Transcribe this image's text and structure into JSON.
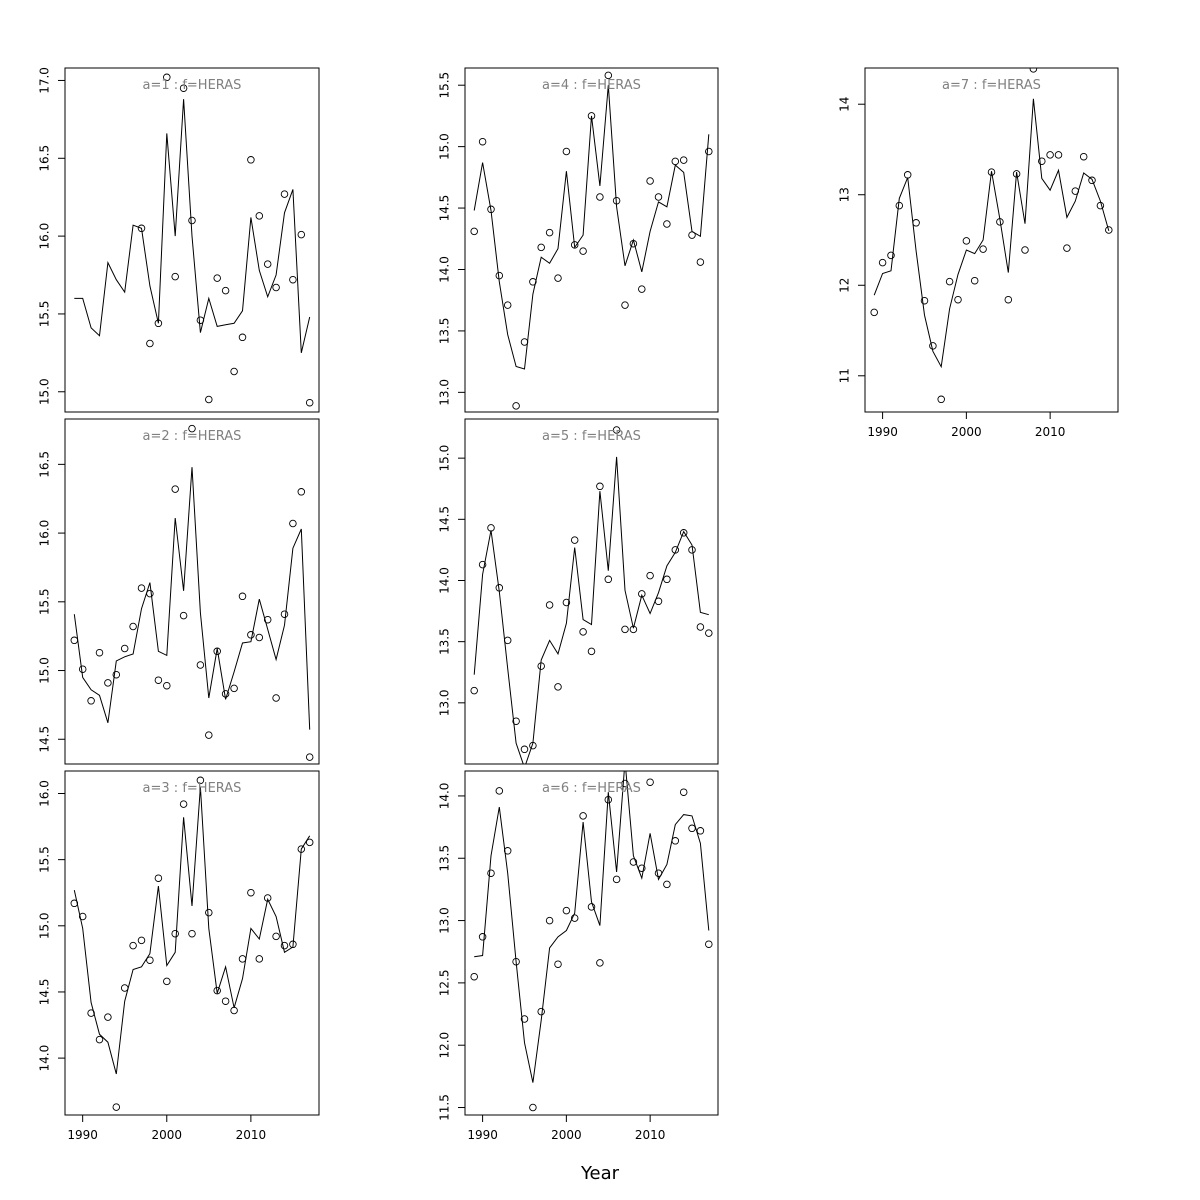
{
  "xlabel": "Year",
  "chart_data": [
    {
      "type": "scatter",
      "title": "a=1 : f=HERAS",
      "x": [
        1989,
        1990,
        1991,
        1992,
        1993,
        1994,
        1995,
        1996,
        1997,
        1998,
        1999,
        2000,
        2001,
        2002,
        2003,
        2004,
        2005,
        2006,
        2007,
        2008,
        2009,
        2010,
        2011,
        2012,
        2013,
        2014,
        2015,
        2016,
        2017
      ],
      "observed": [
        null,
        null,
        null,
        null,
        null,
        null,
        null,
        null,
        16.05,
        15.31,
        15.44,
        17.02,
        15.74,
        16.95,
        16.1,
        15.46,
        14.95,
        15.73,
        15.65,
        15.13,
        15.35,
        16.49,
        16.13,
        15.82,
        15.67,
        16.27,
        15.72,
        16.01,
        14.93
      ],
      "fitted": [
        15.6,
        15.6,
        15.41,
        15.36,
        15.83,
        15.72,
        15.64,
        16.07,
        16.05,
        15.68,
        15.44,
        16.66,
        16.0,
        16.88,
        16.0,
        15.38,
        15.6,
        15.42,
        15.43,
        15.44,
        15.52,
        16.12,
        15.78,
        15.61,
        15.75,
        16.15,
        16.3,
        15.25,
        15.48
      ],
      "ylim": [
        14.87,
        17.08
      ],
      "yticks": [
        15.0,
        15.5,
        16.0,
        16.5,
        17.0
      ],
      "ytick_labels": [
        "15.0",
        "15.5",
        "16.0",
        "16.5",
        "17.0"
      ]
    },
    {
      "type": "scatter",
      "title": "a=2 : f=HERAS",
      "x": [
        1989,
        1990,
        1991,
        1992,
        1993,
        1994,
        1995,
        1996,
        1997,
        1998,
        1999,
        2000,
        2001,
        2002,
        2003,
        2004,
        2005,
        2006,
        2007,
        2008,
        2009,
        2010,
        2011,
        2012,
        2013,
        2014,
        2015,
        2016,
        2017
      ],
      "observed": [
        15.22,
        15.01,
        14.78,
        15.13,
        14.91,
        14.97,
        15.16,
        15.32,
        15.6,
        15.56,
        14.93,
        14.89,
        16.32,
        15.4,
        16.76,
        15.04,
        14.53,
        15.14,
        14.83,
        14.87,
        15.54,
        15.26,
        15.24,
        15.37,
        14.8,
        15.41,
        16.07,
        16.3,
        14.37
      ],
      "fitted": [
        15.41,
        14.95,
        14.86,
        14.82,
        14.62,
        15.07,
        15.1,
        15.12,
        15.45,
        15.64,
        15.14,
        15.11,
        16.11,
        15.58,
        16.48,
        15.42,
        14.8,
        15.16,
        14.79,
        14.99,
        15.2,
        15.21,
        15.52,
        15.3,
        15.08,
        15.33,
        15.89,
        16.03,
        14.57
      ],
      "ylim": [
        14.32,
        16.83
      ],
      "yticks": [
        14.5,
        15.0,
        15.5,
        16.0,
        16.5
      ],
      "ytick_labels": [
        "14.5",
        "15.0",
        "15.5",
        "16.0",
        "16.5"
      ]
    },
    {
      "type": "scatter",
      "title": "a=3 : f=HERAS",
      "x": [
        1989,
        1990,
        1991,
        1992,
        1993,
        1994,
        1995,
        1996,
        1997,
        1998,
        1999,
        2000,
        2001,
        2002,
        2003,
        2004,
        2005,
        2006,
        2007,
        2008,
        2009,
        2010,
        2011,
        2012,
        2013,
        2014,
        2015,
        2016,
        2017
      ],
      "observed": [
        15.17,
        15.07,
        14.34,
        14.14,
        14.31,
        13.63,
        14.53,
        14.85,
        14.89,
        14.74,
        15.36,
        14.58,
        14.94,
        15.92,
        14.94,
        16.1,
        15.1,
        14.51,
        14.43,
        14.36,
        14.75,
        15.25,
        14.75,
        15.21,
        14.92,
        14.85,
        14.86,
        15.58,
        15.63
      ],
      "fitted": [
        15.27,
        14.98,
        14.42,
        14.18,
        14.12,
        13.88,
        14.43,
        14.67,
        14.69,
        14.79,
        15.3,
        14.7,
        14.8,
        15.82,
        15.15,
        16.05,
        14.98,
        14.49,
        14.69,
        14.38,
        14.6,
        14.98,
        14.9,
        15.2,
        15.07,
        14.8,
        14.84,
        15.58,
        15.68
      ],
      "ylim": [
        13.57,
        16.17
      ],
      "yticks": [
        14.0,
        14.5,
        15.0,
        15.5,
        16.0
      ],
      "ytick_labels": [
        "14.0",
        "14.5",
        "15.0",
        "15.5",
        "16.0"
      ]
    },
    {
      "type": "scatter",
      "title": "a=4 : f=HERAS",
      "x": [
        1989,
        1990,
        1991,
        1992,
        1993,
        1994,
        1995,
        1996,
        1997,
        1998,
        1999,
        2000,
        2001,
        2002,
        2003,
        2004,
        2005,
        2006,
        2007,
        2008,
        2009,
        2010,
        2011,
        2012,
        2013,
        2014,
        2015,
        2016,
        2017
      ],
      "observed": [
        14.31,
        15.04,
        14.49,
        13.95,
        13.71,
        12.89,
        13.41,
        13.9,
        14.18,
        14.3,
        13.93,
        14.96,
        14.2,
        14.15,
        15.25,
        14.59,
        15.58,
        14.56,
        13.71,
        14.21,
        13.84,
        14.72,
        14.59,
        14.37,
        14.88,
        14.89,
        14.28,
        14.06,
        14.96
      ],
      "fitted": [
        14.48,
        14.87,
        14.48,
        13.9,
        13.47,
        13.21,
        13.19,
        13.8,
        14.1,
        14.05,
        14.17,
        14.8,
        14.18,
        14.28,
        15.25,
        14.68,
        15.5,
        14.51,
        14.03,
        14.24,
        13.98,
        14.31,
        14.55,
        14.51,
        14.85,
        14.79,
        14.31,
        14.27,
        15.1
      ],
      "ylim": [
        12.84,
        15.64
      ],
      "yticks": [
        13.0,
        13.5,
        14.0,
        14.5,
        15.0,
        15.5
      ],
      "ytick_labels": [
        "13.0",
        "13.5",
        "14.0",
        "14.5",
        "15.0",
        "15.5"
      ]
    },
    {
      "type": "scatter",
      "title": "a=5 : f=HERAS",
      "x": [
        1989,
        1990,
        1991,
        1992,
        1993,
        1994,
        1995,
        1996,
        1997,
        1998,
        1999,
        2000,
        2001,
        2002,
        2003,
        2004,
        2005,
        2006,
        2007,
        2008,
        2009,
        2010,
        2011,
        2012,
        2013,
        2014,
        2015,
        2016,
        2017
      ],
      "observed": [
        13.1,
        14.13,
        14.43,
        13.94,
        13.51,
        12.85,
        12.62,
        12.65,
        13.3,
        13.8,
        13.13,
        13.82,
        14.33,
        13.58,
        13.42,
        14.77,
        14.01,
        15.23,
        13.6,
        13.6,
        13.89,
        14.04,
        13.83,
        14.01,
        14.25,
        14.39,
        14.25,
        13.62,
        13.57
      ],
      "fitted": [
        13.23,
        14.05,
        14.41,
        13.91,
        13.28,
        12.67,
        12.47,
        12.67,
        13.35,
        13.51,
        13.4,
        13.65,
        14.27,
        13.68,
        13.64,
        14.73,
        14.08,
        15.01,
        13.92,
        13.61,
        13.88,
        13.73,
        13.9,
        14.12,
        14.23,
        14.4,
        14.29,
        13.74,
        13.72
      ],
      "ylim": [
        12.5,
        15.32
      ],
      "yticks": [
        13.0,
        13.5,
        14.0,
        14.5,
        15.0
      ],
      "ytick_labels": [
        "13.0",
        "13.5",
        "14.0",
        "14.5",
        "15.0"
      ]
    },
    {
      "type": "scatter",
      "title": "a=6 : f=HERAS",
      "x": [
        1989,
        1990,
        1991,
        1992,
        1993,
        1994,
        1995,
        1996,
        1997,
        1998,
        1999,
        2000,
        2001,
        2002,
        2003,
        2004,
        2005,
        2006,
        2007,
        2008,
        2009,
        2010,
        2011,
        2012,
        2013,
        2014,
        2015,
        2016,
        2017
      ],
      "observed": [
        12.55,
        12.87,
        13.38,
        14.04,
        13.56,
        12.67,
        12.21,
        11.5,
        12.27,
        13.0,
        12.65,
        13.08,
        13.02,
        13.84,
        13.11,
        12.66,
        13.97,
        13.33,
        14.1,
        13.47,
        13.42,
        14.11,
        13.38,
        13.29,
        13.64,
        14.03,
        13.74,
        13.72,
        12.81
      ],
      "fitted": [
        12.71,
        12.72,
        13.52,
        13.91,
        13.38,
        12.67,
        12.02,
        11.7,
        12.2,
        12.78,
        12.87,
        12.92,
        13.06,
        13.79,
        13.15,
        12.96,
        14.03,
        13.39,
        14.28,
        13.52,
        13.34,
        13.7,
        13.33,
        13.45,
        13.77,
        13.85,
        13.84,
        13.62,
        12.92
      ],
      "ylim": [
        11.44,
        14.2
      ],
      "yticks": [
        11.5,
        12.0,
        12.5,
        13.0,
        13.5,
        14.0
      ],
      "ytick_labels": [
        "11.5",
        "12.0",
        "12.5",
        "13.0",
        "13.5",
        "14.0"
      ]
    },
    {
      "type": "scatter",
      "title": "a=7 : f=HERAS",
      "x": [
        1989,
        1990,
        1991,
        1992,
        1993,
        1994,
        1995,
        1996,
        1997,
        1998,
        1999,
        2000,
        2001,
        2002,
        2003,
        2004,
        2005,
        2006,
        2007,
        2008,
        2009,
        2010,
        2011,
        2012,
        2013,
        2014,
        2015,
        2016,
        2017
      ],
      "observed": [
        11.7,
        12.25,
        12.33,
        12.88,
        13.22,
        12.69,
        11.83,
        11.33,
        10.74,
        12.04,
        11.84,
        12.49,
        12.05,
        12.4,
        13.25,
        12.7,
        11.84,
        13.23,
        12.39,
        14.39,
        13.37,
        13.44,
        13.44,
        12.41,
        13.04,
        13.42,
        13.16,
        12.88,
        12.61
      ],
      "fitted": [
        11.89,
        12.13,
        12.16,
        12.96,
        13.19,
        12.38,
        11.67,
        11.27,
        11.1,
        11.74,
        12.12,
        12.39,
        12.35,
        12.5,
        13.26,
        12.73,
        12.14,
        13.25,
        12.68,
        14.06,
        13.18,
        13.05,
        13.27,
        12.75,
        12.93,
        13.24,
        13.17,
        12.93,
        12.6
      ],
      "ylim": [
        10.6,
        14.4
      ],
      "yticks": [
        11,
        12,
        13,
        14
      ],
      "ytick_labels": [
        "11",
        "12",
        "13",
        "14"
      ]
    }
  ],
  "x_axis": {
    "xlim": [
      1987.9,
      2018.1
    ],
    "xticks": [
      1990,
      2000,
      2010
    ],
    "xtick_labels": [
      "1990",
      "2000",
      "2010"
    ]
  }
}
